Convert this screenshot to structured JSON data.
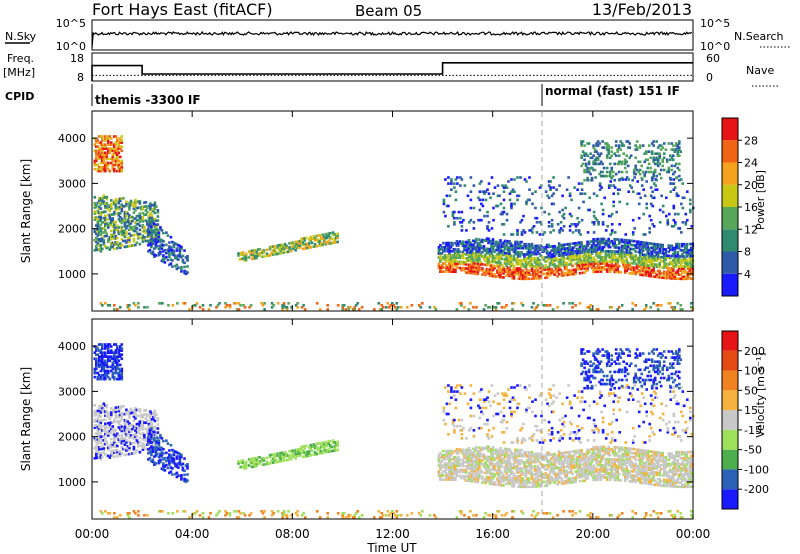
{
  "header": {
    "station": "Fort Hays East (fitACF)",
    "beam": "Beam 05",
    "date": "13/Feb/2013"
  },
  "status_panel": {
    "nsky_label": "N.Sky",
    "nsky_ticks": [
      "10^5",
      "10^0"
    ],
    "nsearch_label": "N.Search",
    "nsearch_ticks": [
      "10^5",
      "10^0"
    ],
    "freq_label": "Freq.",
    "freq_unit": "[MHz]",
    "freq_ticks": [
      "18",
      "8"
    ],
    "nave_label": "Nave",
    "nave_ticks": [
      "60",
      "0"
    ],
    "cpid_label": "CPID",
    "cpid_entries": [
      {
        "text": "themis -3300 IF",
        "start_hour": 0,
        "end_hour": 18
      },
      {
        "text": "normal (fast) 151 IF",
        "start_hour": 18,
        "end_hour": 24
      }
    ]
  },
  "colors": {
    "power": [
      "#1a1aff",
      "#2e5aa8",
      "#2f8a6e",
      "#57a65a",
      "#c8c814",
      "#f5a31e",
      "#f06414",
      "#e61414"
    ],
    "velocity": [
      "#1a1aff",
      "#2b62b8",
      "#4cae4c",
      "#9ee05a",
      "#c8c8c8",
      "#f5b23c",
      "#f08220",
      "#e64a14",
      "#e61414"
    ]
  },
  "chart_data": [
    {
      "type": "heatmap",
      "name": "power",
      "ylabel": "Slant Range [km]",
      "xlabel": "",
      "xlim": [
        0,
        24
      ],
      "ylim": [
        180,
        4600
      ],
      "y_ticks": [
        1000,
        2000,
        3000,
        4000
      ],
      "x_ticks": [
        "00:00",
        "04:00",
        "08:00",
        "12:00",
        "16:00",
        "20:00",
        "00:00"
      ],
      "colorbar_label": "Power [dB]",
      "colorbar_ticks": [
        "4",
        "8",
        "12",
        "16",
        "20",
        "24",
        "28"
      ],
      "dashed_line_hour": 18,
      "grid": false
    },
    {
      "type": "heatmap",
      "name": "velocity",
      "ylabel": "Slant Range [km]",
      "xlabel": "Time UT",
      "xlim": [
        0,
        24
      ],
      "ylim": [
        180,
        4600
      ],
      "y_ticks": [
        1000,
        2000,
        3000,
        4000
      ],
      "x_ticks": [
        "00:00",
        "04:00",
        "08:00",
        "12:00",
        "16:00",
        "20:00",
        "00:00"
      ],
      "colorbar_label": "Velocity [m s⁻¹]",
      "colorbar_ticks": [
        "200",
        "100",
        "50",
        "15",
        "-15",
        "-50",
        "-100",
        "-200"
      ],
      "dashed_line_hour": 18,
      "grid": false
    }
  ],
  "freq_series": [
    {
      "start_hour": 0,
      "end_hour": 2,
      "value": 13.5
    },
    {
      "start_hour": 2,
      "end_hour": 14,
      "value": 10.5
    },
    {
      "start_hour": 14,
      "end_hour": 24,
      "value": 14.5
    }
  ]
}
